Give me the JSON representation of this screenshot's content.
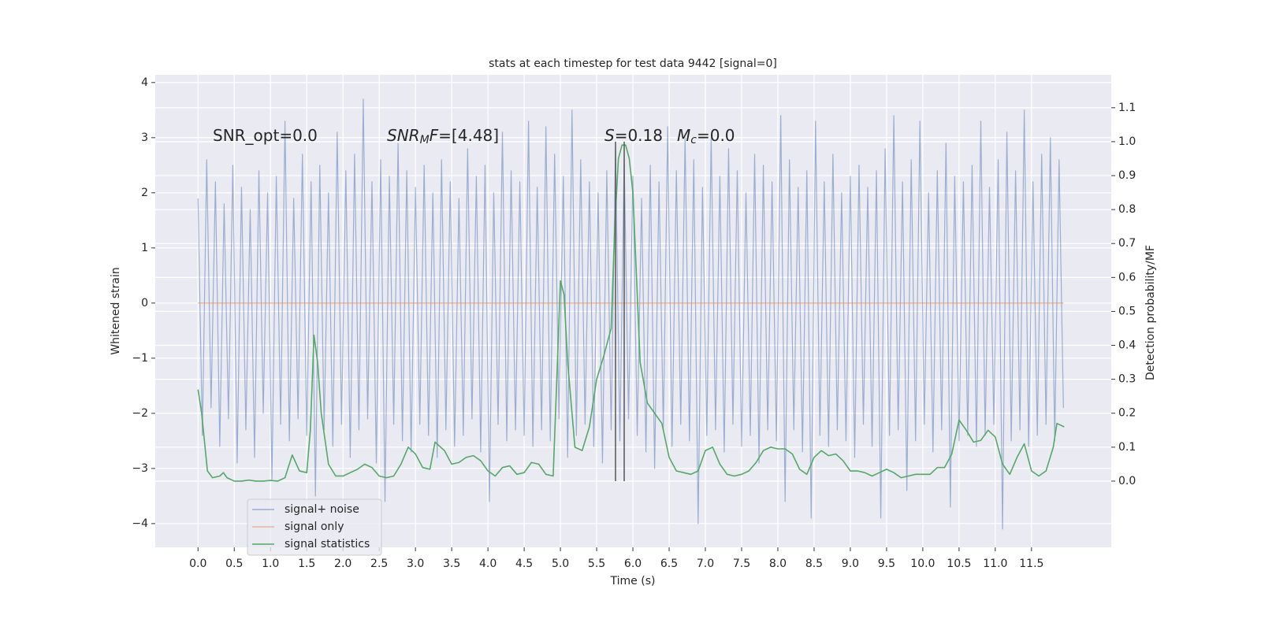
{
  "chart_data": {
    "type": "line",
    "title": "stats at each timestep for test data 9442 [signal=0]",
    "xlabel": "Time (s)",
    "ylabel": "Whitened strain",
    "y2label": "Detection probability/MF",
    "xlim": [
      -0.59,
      12.6
    ],
    "ylim": [
      -4.43,
      4.14
    ],
    "y2lim": [
      -0.195,
      1.197
    ],
    "xticks": [
      {
        "value": 0,
        "label": "0.0"
      },
      0.5,
      {
        "value": 1,
        "label": "1.0"
      },
      1.5,
      {
        "value": 2,
        "label": "2.0"
      },
      2.5,
      {
        "value": 3,
        "label": "3.0"
      },
      3.5,
      {
        "value": 4,
        "label": "4.0"
      },
      4.5,
      {
        "value": 5,
        "label": "5.0"
      },
      5.5,
      {
        "value": 6,
        "label": "6.0"
      },
      6.5,
      {
        "value": 7,
        "label": "7.0"
      },
      7.5,
      {
        "value": 8,
        "label": "8.0"
      },
      8.5,
      {
        "value": 9,
        "label": "9.0"
      },
      9.5,
      {
        "value": 10,
        "label": "10.0"
      },
      10.5,
      {
        "value": 11,
        "label": "11.0"
      },
      11.5
    ],
    "yticks": [
      {
        "value": -4,
        "label": "−4"
      },
      {
        "value": -3,
        "label": "−3"
      },
      {
        "value": -2,
        "label": "−2"
      },
      {
        "value": -1,
        "label": "−1"
      },
      0,
      1,
      2,
      3,
      4
    ],
    "y2ticks": [
      {
        "value": 0,
        "label": "0.0"
      },
      0.1,
      0.2,
      0.3,
      0.4,
      0.5,
      0.6,
      0.7,
      0.8,
      0.9,
      {
        "value": 1,
        "label": "1.0"
      },
      1.1
    ],
    "grid": true,
    "legend": "lower left",
    "series": [
      {
        "name": "signal+ noise",
        "color": "#4c72b0",
        "opacity": 0.5,
        "x": [
          0,
          0.06,
          0.12,
          0.18,
          0.24,
          0.3,
          0.36,
          0.42,
          0.48,
          0.54,
          0.6,
          0.66,
          0.72,
          0.78,
          0.84,
          0.9,
          0.96,
          1.02,
          1.08,
          1.14,
          1.2,
          1.26,
          1.32,
          1.38,
          1.44,
          1.5,
          1.56,
          1.62,
          1.68,
          1.74,
          1.8,
          1.86,
          1.92,
          1.98,
          2.04,
          2.1,
          2.16,
          2.22,
          2.28,
          2.34,
          2.4,
          2.46,
          2.52,
          2.58,
          2.64,
          2.7,
          2.76,
          2.82,
          2.88,
          2.94,
          3.0,
          3.06,
          3.12,
          3.18,
          3.24,
          3.3,
          3.36,
          3.42,
          3.48,
          3.54,
          3.6,
          3.66,
          3.72,
          3.78,
          3.84,
          3.9,
          3.96,
          4.02,
          4.08,
          4.14,
          4.2,
          4.26,
          4.32,
          4.38,
          4.44,
          4.5,
          4.56,
          4.62,
          4.68,
          4.74,
          4.8,
          4.86,
          4.92,
          4.98,
          5.04,
          5.1,
          5.16,
          5.22,
          5.28,
          5.34,
          5.4,
          5.46,
          5.52,
          5.58,
          5.64,
          5.7,
          5.76,
          5.82,
          5.88,
          5.94,
          6.0,
          6.06,
          6.12,
          6.18,
          6.24,
          6.3,
          6.36,
          6.42,
          6.48,
          6.54,
          6.6,
          6.66,
          6.72,
          6.78,
          6.84,
          6.9,
          6.96,
          7.02,
          7.08,
          7.14,
          7.2,
          7.26,
          7.32,
          7.38,
          7.44,
          7.5,
          7.56,
          7.62,
          7.68,
          7.74,
          7.8,
          7.86,
          7.92,
          7.98,
          8.04,
          8.1,
          8.16,
          8.22,
          8.28,
          8.34,
          8.4,
          8.46,
          8.52,
          8.58,
          8.64,
          8.7,
          8.76,
          8.82,
          8.88,
          8.94,
          9.0,
          9.06,
          9.12,
          9.18,
          9.24,
          9.3,
          9.36,
          9.42,
          9.48,
          9.54,
          9.6,
          9.66,
          9.72,
          9.78,
          9.84,
          9.9,
          9.96,
          10.02,
          10.08,
          10.14,
          10.2,
          10.26,
          10.32,
          10.38,
          10.44,
          10.5,
          10.56,
          10.62,
          10.68,
          10.74,
          10.8,
          10.86,
          10.92,
          10.98,
          11.04,
          11.1,
          11.16,
          11.22,
          11.28,
          11.34,
          11.4,
          11.46,
          11.52,
          11.58,
          11.64,
          11.7,
          11.76,
          11.82,
          11.88,
          11.94
        ],
        "values": [
          1.9,
          -2.4,
          2.6,
          -1.9,
          2.2,
          -2.6,
          1.8,
          -2.1,
          2.5,
          -2.9,
          2.1,
          -2.3,
          1.7,
          -2.8,
          2.4,
          -2.0,
          2.0,
          -3.2,
          2.3,
          -2.2,
          3.3,
          -2.5,
          1.9,
          -2.1,
          2.7,
          -2.4,
          2.2,
          -3.5,
          2.5,
          -2.3,
          2.0,
          -2.6,
          3.1,
          -2.2,
          2.4,
          -2.8,
          2.7,
          -2.3,
          3.7,
          -2.1,
          2.2,
          -2.9,
          2.6,
          -3.6,
          2.3,
          -2.2,
          2.9,
          -2.5,
          2.4,
          -2.7,
          2.1,
          -2.2,
          2.5,
          -2.4,
          2.0,
          -2.8,
          2.6,
          -2.3,
          2.2,
          -2.6,
          1.9,
          -2.4,
          2.8,
          -2.1,
          2.3,
          -2.7,
          2.5,
          -3.6,
          2.0,
          -2.2,
          3.1,
          -2.5,
          2.4,
          -2.3,
          2.2,
          -2.4,
          3.3,
          -2.6,
          2.1,
          -2.3,
          3.2,
          -2.5,
          2.7,
          -2.1,
          2.3,
          -2.8,
          3.5,
          -2.4,
          2.6,
          -2.2,
          2.2,
          -2.6,
          2.0,
          -2.9,
          2.4,
          -2.3,
          2.8,
          -2.5,
          2.6,
          -2.1,
          2.3,
          -2.4,
          1.9,
          -2.7,
          2.5,
          -3.0,
          2.2,
          -2.3,
          3.2,
          -2.6,
          2.4,
          -2.2,
          3.0,
          -2.5,
          2.6,
          -4.0,
          2.1,
          -2.4,
          3.0,
          -2.3,
          2.3,
          -2.7,
          2.8,
          -2.2,
          2.4,
          -2.6,
          2.0,
          -2.4,
          2.7,
          -2.9,
          2.5,
          -2.3,
          2.2,
          -2.5,
          3.4,
          -3.6,
          2.6,
          -2.3,
          2.1,
          -2.7,
          2.4,
          -3.9,
          3.3,
          -2.4,
          2.2,
          -2.6,
          2.7,
          -2.3,
          2.0,
          -2.5,
          2.3,
          -2.8,
          2.5,
          -2.2,
          2.1,
          -2.6,
          2.4,
          -3.9,
          2.8,
          -2.4,
          3.4,
          -2.3,
          2.2,
          -3.4,
          2.6,
          -2.5,
          3.3,
          -2.2,
          2.0,
          -2.7,
          2.4,
          -2.3,
          2.9,
          -3.7,
          2.3,
          -2.5,
          2.2,
          -2.4,
          2.5,
          -2.6,
          3.3,
          -2.4,
          2.1,
          -2.2,
          2.6,
          -4.1,
          3.1,
          -2.5,
          2.4,
          -2.3,
          3.5,
          -2.6,
          2.2,
          -2.4,
          2.7,
          -2.2,
          3.0,
          -2.5,
          2.6,
          -1.9
        ]
      },
      {
        "name": "signal only",
        "color": "#dd8452",
        "opacity": 0.5,
        "x": [
          0,
          11.94
        ],
        "values": [
          0,
          0
        ]
      },
      {
        "name": "signal statistics",
        "color": "#55a868",
        "opacity": 1,
        "axis": "y2",
        "x": [
          0,
          0.05,
          0.13,
          0.2,
          0.3,
          0.35,
          0.4,
          0.5,
          0.6,
          0.7,
          0.8,
          0.9,
          1.0,
          1.1,
          1.2,
          1.3,
          1.4,
          1.5,
          1.55,
          1.6,
          1.65,
          1.7,
          1.8,
          1.9,
          2.0,
          2.1,
          2.2,
          2.3,
          2.4,
          2.5,
          2.6,
          2.7,
          2.8,
          2.9,
          3.0,
          3.1,
          3.2,
          3.27,
          3.4,
          3.5,
          3.6,
          3.7,
          3.8,
          3.9,
          4.0,
          4.1,
          4.2,
          4.3,
          4.4,
          4.5,
          4.6,
          4.7,
          4.8,
          4.9,
          4.95,
          5.0,
          5.05,
          5.1,
          5.2,
          5.3,
          5.4,
          5.5,
          5.6,
          5.7,
          5.75,
          5.8,
          5.85,
          5.9,
          5.95,
          6.0,
          6.05,
          6.1,
          6.2,
          6.3,
          6.4,
          6.5,
          6.6,
          6.7,
          6.8,
          6.9,
          7.0,
          7.1,
          7.2,
          7.3,
          7.4,
          7.5,
          7.6,
          7.7,
          7.8,
          7.9,
          8.0,
          8.1,
          8.2,
          8.3,
          8.4,
          8.5,
          8.6,
          8.7,
          8.8,
          8.9,
          9.0,
          9.1,
          9.2,
          9.3,
          9.4,
          9.5,
          9.6,
          9.7,
          9.8,
          9.9,
          10.0,
          10.1,
          10.2,
          10.3,
          10.4,
          10.5,
          10.6,
          10.7,
          10.8,
          10.9,
          11.0,
          11.1,
          11.2,
          11.3,
          11.4,
          11.5,
          11.6,
          11.7,
          11.8,
          11.85,
          11.95
        ],
        "values": [
          0.27,
          0.2,
          0.03,
          0.01,
          0.015,
          0.025,
          0.01,
          0.0,
          0.0,
          0.003,
          0.0,
          0.0,
          0.002,
          0.0,
          0.01,
          0.077,
          0.03,
          0.025,
          0.15,
          0.43,
          0.35,
          0.2,
          0.05,
          0.015,
          0.015,
          0.025,
          0.035,
          0.05,
          0.04,
          0.015,
          0.01,
          0.015,
          0.05,
          0.1,
          0.08,
          0.04,
          0.035,
          0.115,
          0.09,
          0.05,
          0.055,
          0.07,
          0.075,
          0.06,
          0.03,
          0.015,
          0.04,
          0.045,
          0.02,
          0.025,
          0.055,
          0.05,
          0.02,
          0.015,
          0.3,
          0.59,
          0.55,
          0.35,
          0.1,
          0.09,
          0.16,
          0.3,
          0.37,
          0.45,
          0.75,
          0.95,
          0.99,
          0.99,
          0.95,
          0.85,
          0.6,
          0.35,
          0.23,
          0.2,
          0.17,
          0.07,
          0.03,
          0.025,
          0.02,
          0.03,
          0.09,
          0.1,
          0.05,
          0.02,
          0.015,
          0.02,
          0.03,
          0.055,
          0.09,
          0.1,
          0.095,
          0.095,
          0.08,
          0.035,
          0.02,
          0.07,
          0.09,
          0.075,
          0.08,
          0.06,
          0.03,
          0.03,
          0.025,
          0.015,
          0.025,
          0.035,
          0.025,
          0.01,
          0.015,
          0.02,
          0.02,
          0.02,
          0.04,
          0.04,
          0.08,
          0.18,
          0.15,
          0.115,
          0.12,
          0.15,
          0.13,
          0.05,
          0.02,
          0.07,
          0.11,
          0.03,
          0.015,
          0.03,
          0.1,
          0.17,
          0.16
        ]
      }
    ],
    "vlines": {
      "x": [
        5.76,
        5.88
      ],
      "ymin": 0,
      "ymax": 1,
      "color": "#555555",
      "axis": "y2"
    },
    "annotations": [
      [
        {
          "text": "SNR_opt=0.0"
        }
      ],
      [
        {
          "text": "SNR",
          "italic": true
        },
        {
          "text": "M",
          "italic": true,
          "sub": true
        },
        {
          "text": "F",
          "italic": true
        },
        {
          "text": "=[4.48]"
        }
      ],
      [
        {
          "text": "S",
          "italic": true
        },
        {
          "text": "=0.18"
        }
      ],
      [
        {
          "text": "M",
          "italic": true
        },
        {
          "text": "c",
          "italic": true,
          "sub": true
        },
        {
          "text": "=0.0"
        }
      ]
    ]
  }
}
